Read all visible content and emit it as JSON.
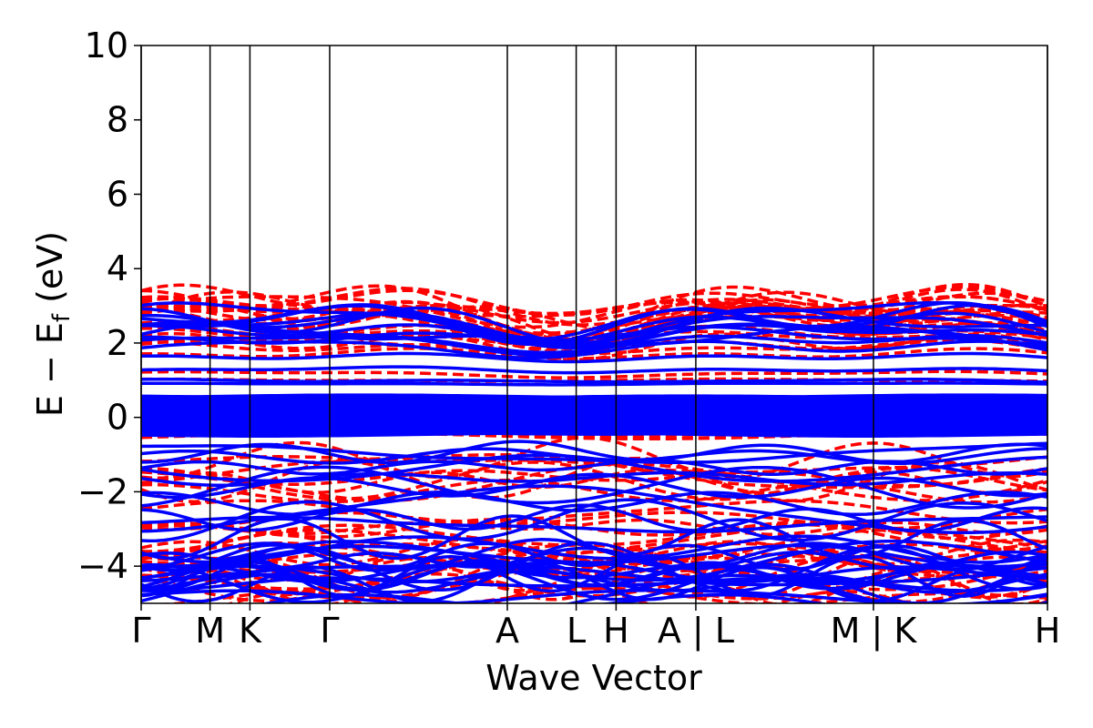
{
  "chart_data": {
    "type": "line",
    "xlabel": "Wave Vector",
    "ylabel": "E − E",
    "ylabel_sub": "f",
    "ylabel_unit": " (eV)",
    "ylim": [
      -5,
      10
    ],
    "xlim": [
      0,
      100
    ],
    "yticks": [
      {
        "value": 10,
        "label": "10"
      },
      {
        "value": 8,
        "label": "8"
      },
      {
        "value": 6,
        "label": "6"
      },
      {
        "value": 4,
        "label": "4"
      },
      {
        "value": 2,
        "label": "2"
      },
      {
        "value": 0,
        "label": "0"
      },
      {
        "value": -2,
        "label": "−2"
      },
      {
        "value": -4,
        "label": "−4"
      }
    ],
    "kpoints": [
      {
        "pos": 0.0,
        "label": "Γ"
      },
      {
        "pos": 7.6,
        "label": "M"
      },
      {
        "pos": 12.0,
        "label": "K"
      },
      {
        "pos": 20.8,
        "label": "Γ"
      },
      {
        "pos": 40.4,
        "label": "A"
      },
      {
        "pos": 48.0,
        "label": "L"
      },
      {
        "pos": 52.4,
        "label": "H"
      },
      {
        "pos": 61.2,
        "label": "A | L"
      },
      {
        "pos": 80.8,
        "label": "M | K"
      },
      {
        "pos": 100.0,
        "label": "H"
      }
    ],
    "series": [
      {
        "style": "dashed",
        "color": "#ff0000"
      },
      {
        "style": "solid",
        "color": "#0000ff"
      }
    ],
    "grid": false
  }
}
